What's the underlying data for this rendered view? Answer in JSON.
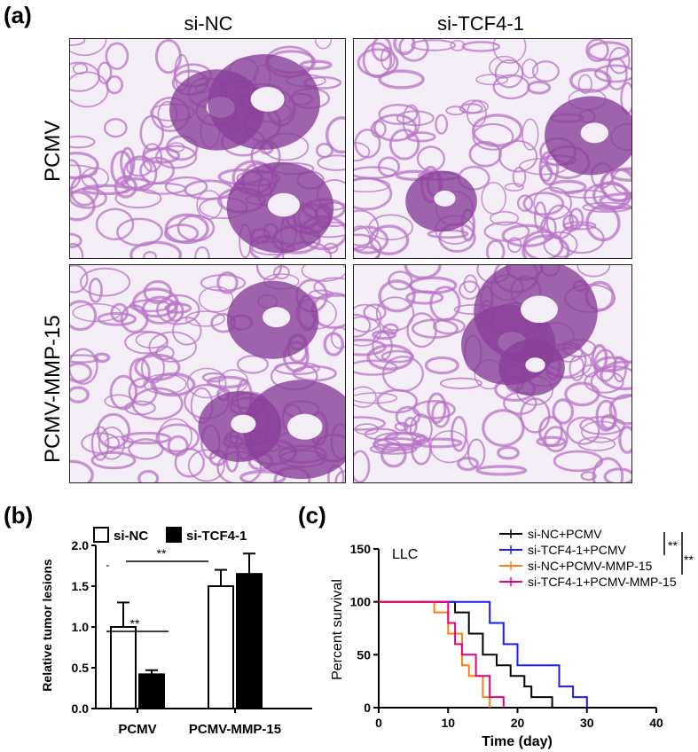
{
  "panel_a": {
    "letter": "(a)",
    "columns": [
      "si-NC",
      "si-TCF4-1"
    ],
    "rows": [
      "PCMV",
      "PCMV-MMP-15"
    ],
    "images": [
      {
        "name": "he-stain-sinc-pcmv",
        "col": "si-NC",
        "row": "PCMV"
      },
      {
        "name": "he-stain-sitcf4-pcmv",
        "col": "si-TCF4-1",
        "row": "PCMV"
      },
      {
        "name": "he-stain-sinc-mmp15",
        "col": "si-NC",
        "row": "PCMV-MMP-15"
      },
      {
        "name": "he-stain-sitcf4-mmp15",
        "col": "si-TCF4-1",
        "row": "PCMV-MMP-15"
      }
    ]
  },
  "panel_b": {
    "letter": "(b)"
  },
  "panel_c": {
    "letter": "(c)"
  },
  "colors": {
    "tissue": "#b873c6",
    "tissue_dark": "#8a3f9a",
    "background": "#f4eef6"
  },
  "chart_data": [
    {
      "type": "bar",
      "title": "",
      "xlabel": "",
      "ylabel": "Relative tumor lesions",
      "categories": [
        "PCMV",
        "PCMV-MMP-15"
      ],
      "ylim": [
        0,
        2.0
      ],
      "yticks": [
        "0.0",
        "0.5",
        "1.0",
        "1.5",
        "2.0"
      ],
      "series": [
        {
          "name": "si-NC",
          "fill": "#ffffff",
          "values": [
            1.0,
            1.5
          ],
          "errors": [
            0.3,
            0.2
          ]
        },
        {
          "name": "si-TCF4-1",
          "fill": "#000000",
          "values": [
            0.42,
            1.65
          ],
          "errors": [
            0.05,
            0.25
          ]
        }
      ],
      "legend": "top",
      "annotations": [
        {
          "text": "**",
          "between": "si-NC PCMV vs si-TCF4-1 PCMV"
        },
        {
          "text": "**",
          "between": "PCMV vs PCMV-MMP-15"
        }
      ]
    },
    {
      "type": "line",
      "step": true,
      "title": "LLC",
      "xlabel": "Time (day)",
      "ylabel": "Percent survival",
      "xlim": [
        0,
        40
      ],
      "ylim": [
        0,
        150
      ],
      "xticks": [
        "0",
        "10",
        "20",
        "30",
        "40"
      ],
      "yticks": [
        "0",
        "50",
        "100",
        "150"
      ],
      "legend": "top-right",
      "series": [
        {
          "name": "si-NC+PCMV",
          "color": "#000000",
          "points": [
            [
              0,
              100
            ],
            [
              11,
              100
            ],
            [
              11,
              90
            ],
            [
              13,
              90
            ],
            [
              13,
              70
            ],
            [
              15,
              70
            ],
            [
              15,
              50
            ],
            [
              17,
              50
            ],
            [
              17,
              40
            ],
            [
              19,
              40
            ],
            [
              19,
              30
            ],
            [
              21,
              30
            ],
            [
              21,
              20
            ],
            [
              22,
              20
            ],
            [
              22,
              10
            ],
            [
              25,
              10
            ],
            [
              25,
              0
            ]
          ]
        },
        {
          "name": "si-TCF4-1+PCMV",
          "color": "#1a1aff",
          "points": [
            [
              0,
              100
            ],
            [
              16,
              100
            ],
            [
              16,
              80
            ],
            [
              18,
              80
            ],
            [
              18,
              60
            ],
            [
              20,
              60
            ],
            [
              20,
              40
            ],
            [
              26,
              40
            ],
            [
              26,
              20
            ],
            [
              28,
              20
            ],
            [
              28,
              10
            ],
            [
              30,
              10
            ],
            [
              30,
              0
            ]
          ]
        },
        {
          "name": "si-NC+PCMV-MMP-15",
          "color": "#ff7f0e",
          "points": [
            [
              0,
              100
            ],
            [
              8,
              100
            ],
            [
              8,
              90
            ],
            [
              10,
              90
            ],
            [
              10,
              70
            ],
            [
              12,
              70
            ],
            [
              12,
              40
            ],
            [
              13,
              40
            ],
            [
              13,
              30
            ],
            [
              15,
              30
            ],
            [
              15,
              10
            ],
            [
              16,
              10
            ],
            [
              16,
              0
            ]
          ]
        },
        {
          "name": "si-TCF4-1+PCMV-MMP-15",
          "color": "#e6007e",
          "points": [
            [
              0,
              100
            ],
            [
              10,
              100
            ],
            [
              10,
              80
            ],
            [
              11,
              80
            ],
            [
              11,
              60
            ],
            [
              12,
              60
            ],
            [
              12,
              50
            ],
            [
              14,
              50
            ],
            [
              14,
              30
            ],
            [
              16,
              30
            ],
            [
              16,
              10
            ],
            [
              18,
              10
            ],
            [
              18,
              0
            ]
          ]
        }
      ],
      "annotations": [
        {
          "text": "**"
        },
        {
          "text": "**"
        }
      ]
    }
  ]
}
